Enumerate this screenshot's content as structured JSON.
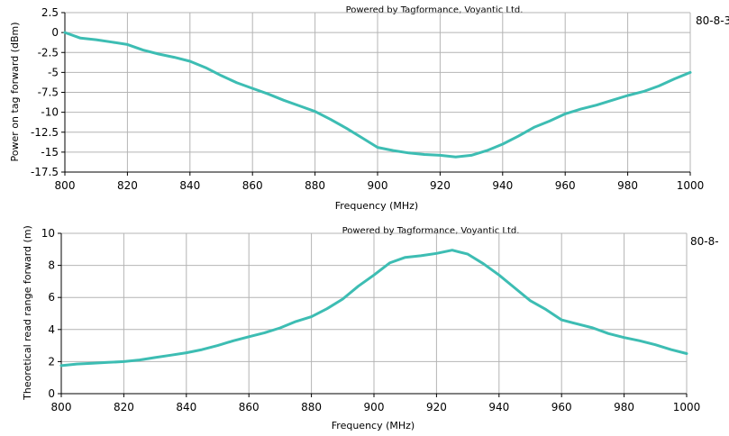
{
  "chart_data": [
    {
      "type": "line",
      "credit": "Powered by Tagformance, Voyantic Ltd.",
      "legend_fragment": "80-8-3",
      "xlabel": "Frequency (MHz)",
      "ylabel": "Power on tag forward (dBm)",
      "xlim": [
        800,
        1000
      ],
      "ylim": [
        -17.5,
        2.5
      ],
      "x_ticks": [
        "800",
        "820",
        "840",
        "860",
        "880",
        "900",
        "920",
        "940",
        "960",
        "980",
        "1000"
      ],
      "y_ticks": [
        "2.5",
        "0",
        "-2.5",
        "-5",
        "-7.5",
        "-10",
        "-12.5",
        "-15",
        "-17.5"
      ],
      "grid": true,
      "series": [
        {
          "color": "#3dbdb3",
          "x": [
            800,
            805,
            810,
            815,
            820,
            825,
            830,
            835,
            840,
            845,
            850,
            855,
            860,
            865,
            870,
            875,
            880,
            885,
            890,
            895,
            900,
            905,
            910,
            915,
            920,
            925,
            930,
            935,
            940,
            945,
            950,
            955,
            960,
            965,
            970,
            975,
            980,
            985,
            990,
            995,
            1000
          ],
          "y": [
            0,
            -0.7,
            -0.9,
            -1.2,
            -1.5,
            -2.2,
            -2.7,
            -3.1,
            -3.6,
            -4.4,
            -5.4,
            -6.3,
            -7.0,
            -7.7,
            -8.5,
            -9.2,
            -9.9,
            -10.9,
            -12.0,
            -13.2,
            -14.4,
            -14.8,
            -15.1,
            -15.3,
            -15.4,
            -15.6,
            -15.4,
            -14.8,
            -14.0,
            -13.0,
            -11.9,
            -11.1,
            -10.2,
            -9.6,
            -9.1,
            -8.5,
            -7.9,
            -7.4,
            -6.7,
            -5.8,
            -5.0
          ]
        }
      ]
    },
    {
      "type": "line",
      "credit": "Powered by Tagformance, Voyantic Ltd.",
      "legend_fragment": "80-8-",
      "xlabel": "Frequency (MHz)",
      "ylabel": "Theoretical read range forward (m)",
      "xlim": [
        800,
        1000
      ],
      "ylim": [
        0,
        10
      ],
      "x_ticks": [
        "800",
        "820",
        "840",
        "860",
        "880",
        "900",
        "920",
        "940",
        "960",
        "980",
        "1000"
      ],
      "y_ticks": [
        "10",
        "8",
        "6",
        "4",
        "2",
        "0"
      ],
      "grid": true,
      "series": [
        {
          "color": "#3dbdb3",
          "x": [
            800,
            805,
            810,
            815,
            820,
            825,
            830,
            835,
            840,
            845,
            850,
            855,
            860,
            865,
            870,
            875,
            880,
            885,
            890,
            895,
            900,
            905,
            910,
            915,
            920,
            925,
            930,
            935,
            940,
            945,
            950,
            955,
            960,
            965,
            970,
            975,
            980,
            985,
            990,
            995,
            1000
          ],
          "y": [
            1.75,
            1.85,
            1.9,
            1.95,
            2.0,
            2.1,
            2.25,
            2.4,
            2.55,
            2.75,
            3.0,
            3.3,
            3.55,
            3.8,
            4.1,
            4.5,
            4.8,
            5.3,
            5.9,
            6.7,
            7.4,
            8.15,
            8.5,
            8.6,
            8.75,
            8.95,
            8.7,
            8.1,
            7.4,
            6.6,
            5.8,
            5.25,
            4.6,
            4.35,
            4.1,
            3.75,
            3.5,
            3.3,
            3.05,
            2.75,
            2.5
          ]
        }
      ]
    }
  ]
}
